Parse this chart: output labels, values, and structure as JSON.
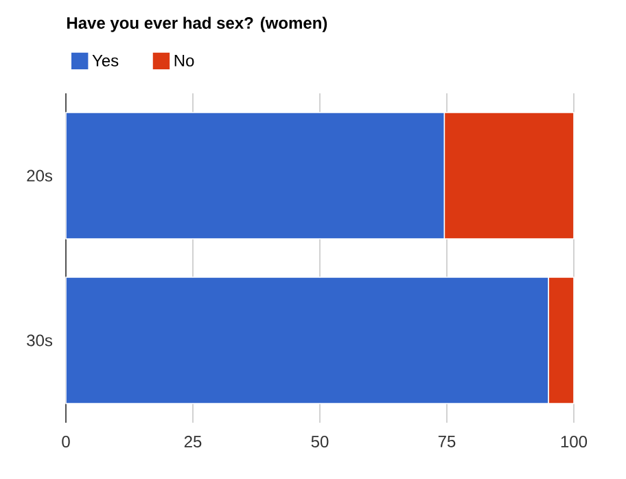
{
  "chart_data": {
    "type": "bar",
    "orientation": "horizontal",
    "stacked": true,
    "title": "Have you ever had sex? (women)",
    "categories": [
      "20s",
      "30s"
    ],
    "series": [
      {
        "name": "Yes",
        "color": "#3366cc",
        "values": [
          74.5,
          95
        ]
      },
      {
        "name": "No",
        "color": "#dc3912",
        "values": [
          25.5,
          5
        ]
      }
    ],
    "xlim": [
      0,
      100
    ],
    "xticks": [
      0,
      25,
      50,
      75,
      100
    ],
    "grid": "x",
    "legend": "top left"
  }
}
